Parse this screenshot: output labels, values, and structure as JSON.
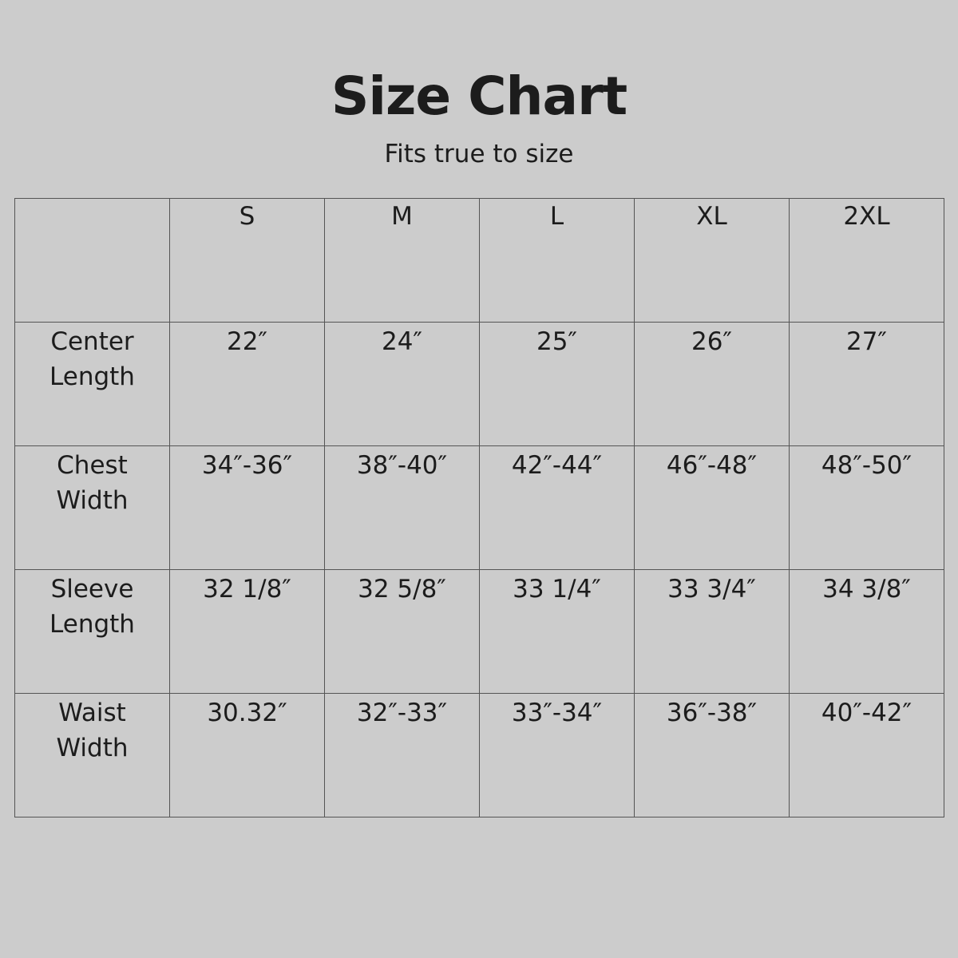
{
  "title": "Size Chart",
  "subtitle": "Fits true to size",
  "table": {
    "corner": "",
    "sizes": [
      "S",
      "M",
      "L",
      "XL",
      "2XL"
    ],
    "rows": [
      {
        "label": [
          "Center",
          "Length"
        ],
        "values": [
          "22″",
          "24″",
          "25″",
          "26″",
          "27″"
        ]
      },
      {
        "label": [
          "Chest",
          "Width"
        ],
        "values": [
          "34″-36″",
          "38″-40″",
          "42″-44″",
          "46″-48″",
          "48″-50″"
        ]
      },
      {
        "label": [
          "Sleeve",
          "Length"
        ],
        "values": [
          "32 1/8″",
          "32 5/8″",
          "33 1/4″",
          "33 3/4″",
          "34 3/8″"
        ]
      },
      {
        "label": [
          "Waist",
          "Width"
        ],
        "values": [
          "30.32″",
          "32″-33″",
          "33″-34″",
          "36″-38″",
          "40″-42″"
        ]
      }
    ]
  }
}
